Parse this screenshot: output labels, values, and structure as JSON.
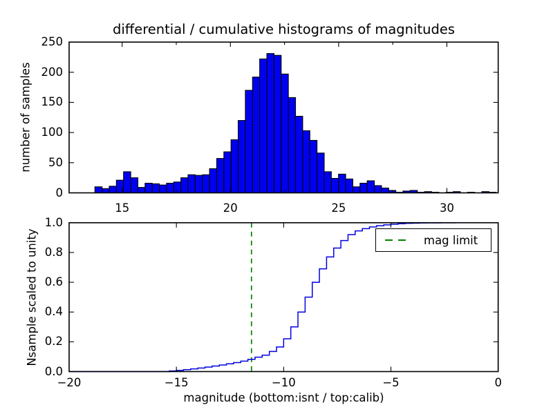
{
  "figure": {
    "title": "differential / cumulative histograms of magnitudes",
    "background": "#ffffff",
    "frame_color": "#000000"
  },
  "legend": {
    "label": "mag limit",
    "position": "upper right"
  },
  "chart_data": [
    {
      "type": "bar",
      "name": "differential-histogram-of-calib-magnitudes",
      "ylabel": "number of samples",
      "xlim": [
        12.55,
        32.37
      ],
      "ylim": [
        0,
        250
      ],
      "grid": false,
      "xticks": {
        "major": [
          15,
          20,
          25,
          30
        ],
        "major_labels": [
          "15",
          "20",
          "25",
          "30"
        ],
        "minor": [
          17.5,
          22.5,
          27.5
        ]
      },
      "yticks": {
        "major": [
          0,
          50,
          100,
          150,
          200,
          250
        ],
        "major_labels": [
          "0",
          "50",
          "100",
          "150",
          "200",
          "250"
        ]
      },
      "bar_color": "#0000f0",
      "bar_edge_color": "#000000",
      "bins": {
        "start": 13.74,
        "width": 0.331
      },
      "values": [
        10,
        7,
        11,
        21,
        35,
        25,
        9,
        16,
        15,
        13,
        16,
        18,
        25,
        30,
        29,
        30,
        40,
        57,
        68,
        88,
        120,
        170,
        192,
        222,
        231,
        228,
        197,
        158,
        127,
        103,
        87,
        66,
        35,
        24,
        31,
        23,
        10,
        16,
        20,
        12,
        8,
        4,
        1,
        3,
        4,
        1,
        2,
        1,
        0,
        1,
        2,
        0,
        1,
        0,
        2,
        1
      ]
    },
    {
      "type": "line",
      "name": "cumulative-histogram-of-isnt-magnitudes",
      "ylabel": "Nsample scaled to unity",
      "xlabel": "magnitude (bottom:isnt / top:calib)",
      "xlim": [
        -20,
        0
      ],
      "ylim": [
        0.0,
        1.0
      ],
      "grid": false,
      "xticks": {
        "major": [
          -20,
          -15,
          -10,
          -5,
          0
        ],
        "major_labels": [
          "−20",
          "−15",
          "−10",
          "−5",
          "0"
        ],
        "minor": []
      },
      "yticks": {
        "major": [
          0.0,
          0.2,
          0.4,
          0.6,
          0.8,
          1.0
        ],
        "major_labels": [
          "0.0",
          "0.2",
          "0.4",
          "0.6",
          "0.8",
          "1.0"
        ]
      },
      "line_color": "#0000e0",
      "step_bins": {
        "start": -20,
        "width": 0.33333
      },
      "cum_fractions": [
        0,
        0,
        0,
        0,
        0,
        0,
        0,
        0,
        0,
        0,
        0,
        0,
        0,
        0,
        0.004,
        0.008,
        0.013,
        0.018,
        0.024,
        0.03,
        0.037,
        0.044,
        0.052,
        0.06,
        0.07,
        0.082,
        0.097,
        0.11,
        0.135,
        0.165,
        0.22,
        0.3,
        0.4,
        0.5,
        0.6,
        0.69,
        0.77,
        0.83,
        0.88,
        0.92,
        0.945,
        0.96,
        0.972,
        0.98,
        0.986,
        0.99,
        0.9935,
        0.996,
        0.9975,
        0.9985,
        0.999,
        0.9993,
        0.9996,
        0.9998,
        1.0,
        1.0,
        1.0,
        1.0,
        1.0,
        1.0
      ],
      "vline": {
        "x": -11.5,
        "color": "#008000",
        "style": "dashed",
        "label": "mag limit"
      }
    }
  ]
}
